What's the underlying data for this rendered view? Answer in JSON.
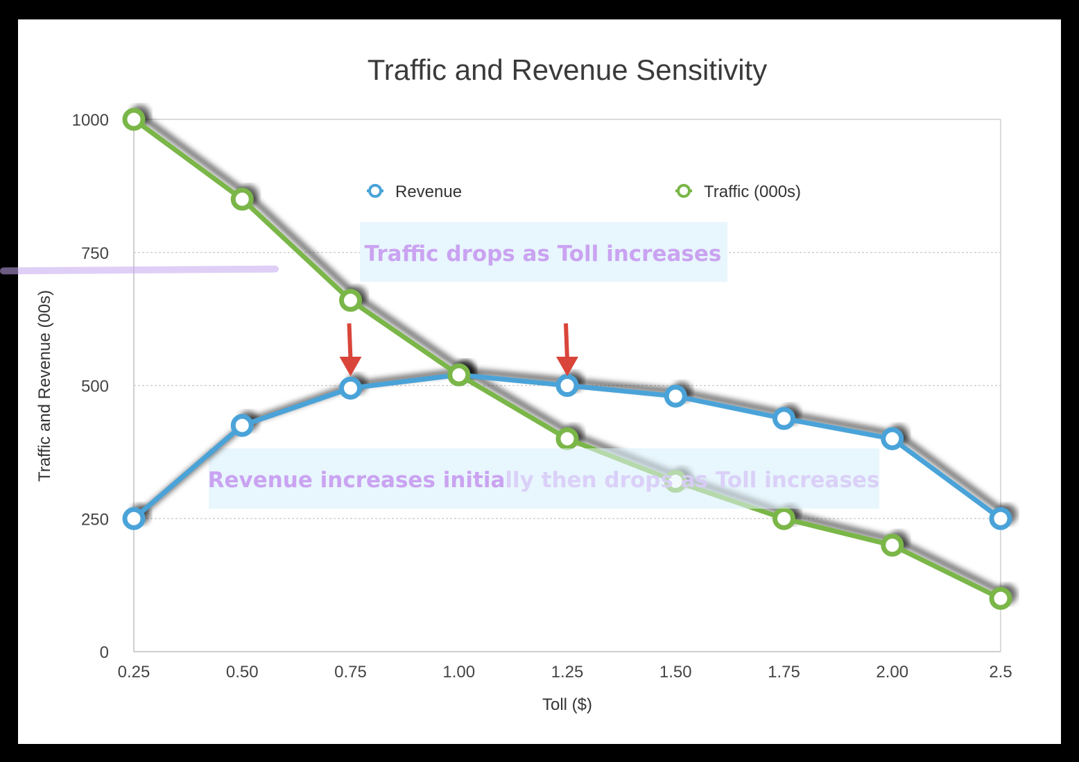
{
  "chart_data": {
    "type": "line",
    "title": "Traffic and Revenue Sensitivity",
    "xlabel": "Toll ($)",
    "ylabel": "Traffic and Revenue (00s)",
    "categories": [
      "0.25",
      "0.50",
      "0.75",
      "1.00",
      "1.25",
      "1.50",
      "1.75",
      "2.00",
      "2.5"
    ],
    "ylim": [
      0,
      1000
    ],
    "yticks": [
      0,
      250,
      500,
      750,
      1000
    ],
    "grid": true,
    "legend_position": "top",
    "series": [
      {
        "name": "Revenue",
        "color": "#4aa3d8",
        "values": [
          250,
          425,
          495,
          520,
          500,
          480,
          438,
          400,
          250
        ]
      },
      {
        "name": "Traffic (000s)",
        "color": "#7ab648",
        "values": [
          1000,
          850,
          660,
          520,
          400,
          320,
          250,
          200,
          100
        ]
      }
    ],
    "annotations": [
      {
        "text": "Traffic drops as Toll increases"
      },
      {
        "text": "Revenue increases initially then drops as Toll increases"
      }
    ],
    "arrow_color": "#d9453a",
    "highlight_color": "#c79bf0",
    "annotation_bg": "#e8f6fd"
  }
}
